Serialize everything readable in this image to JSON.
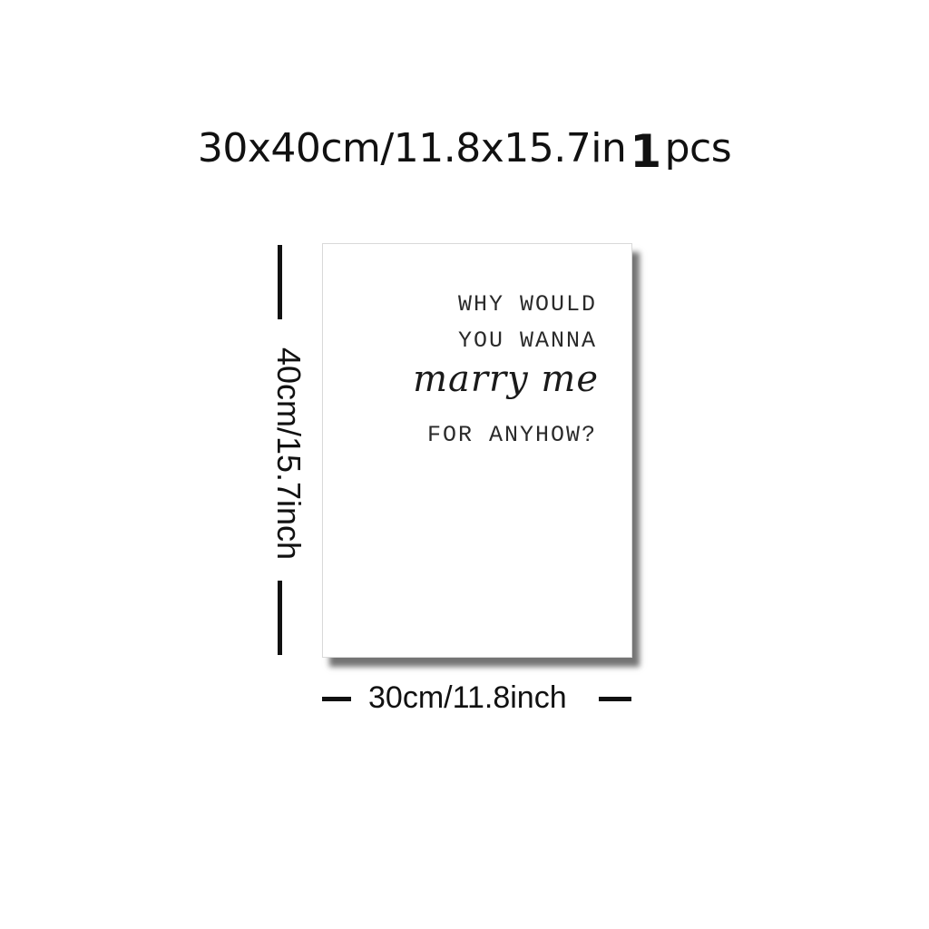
{
  "header": {
    "size_text": "30x40cm/11.8x15.7in",
    "quantity_number": "1",
    "quantity_unit": "pcs"
  },
  "poster": {
    "line1": "WHY WOULD",
    "line2": "YOU WANNA",
    "line3_script": "marry me",
    "line4": "FOR ANYHOW?"
  },
  "dimensions": {
    "height_label": "40cm/15.7inch",
    "width_label": "30cm/11.8inch"
  }
}
